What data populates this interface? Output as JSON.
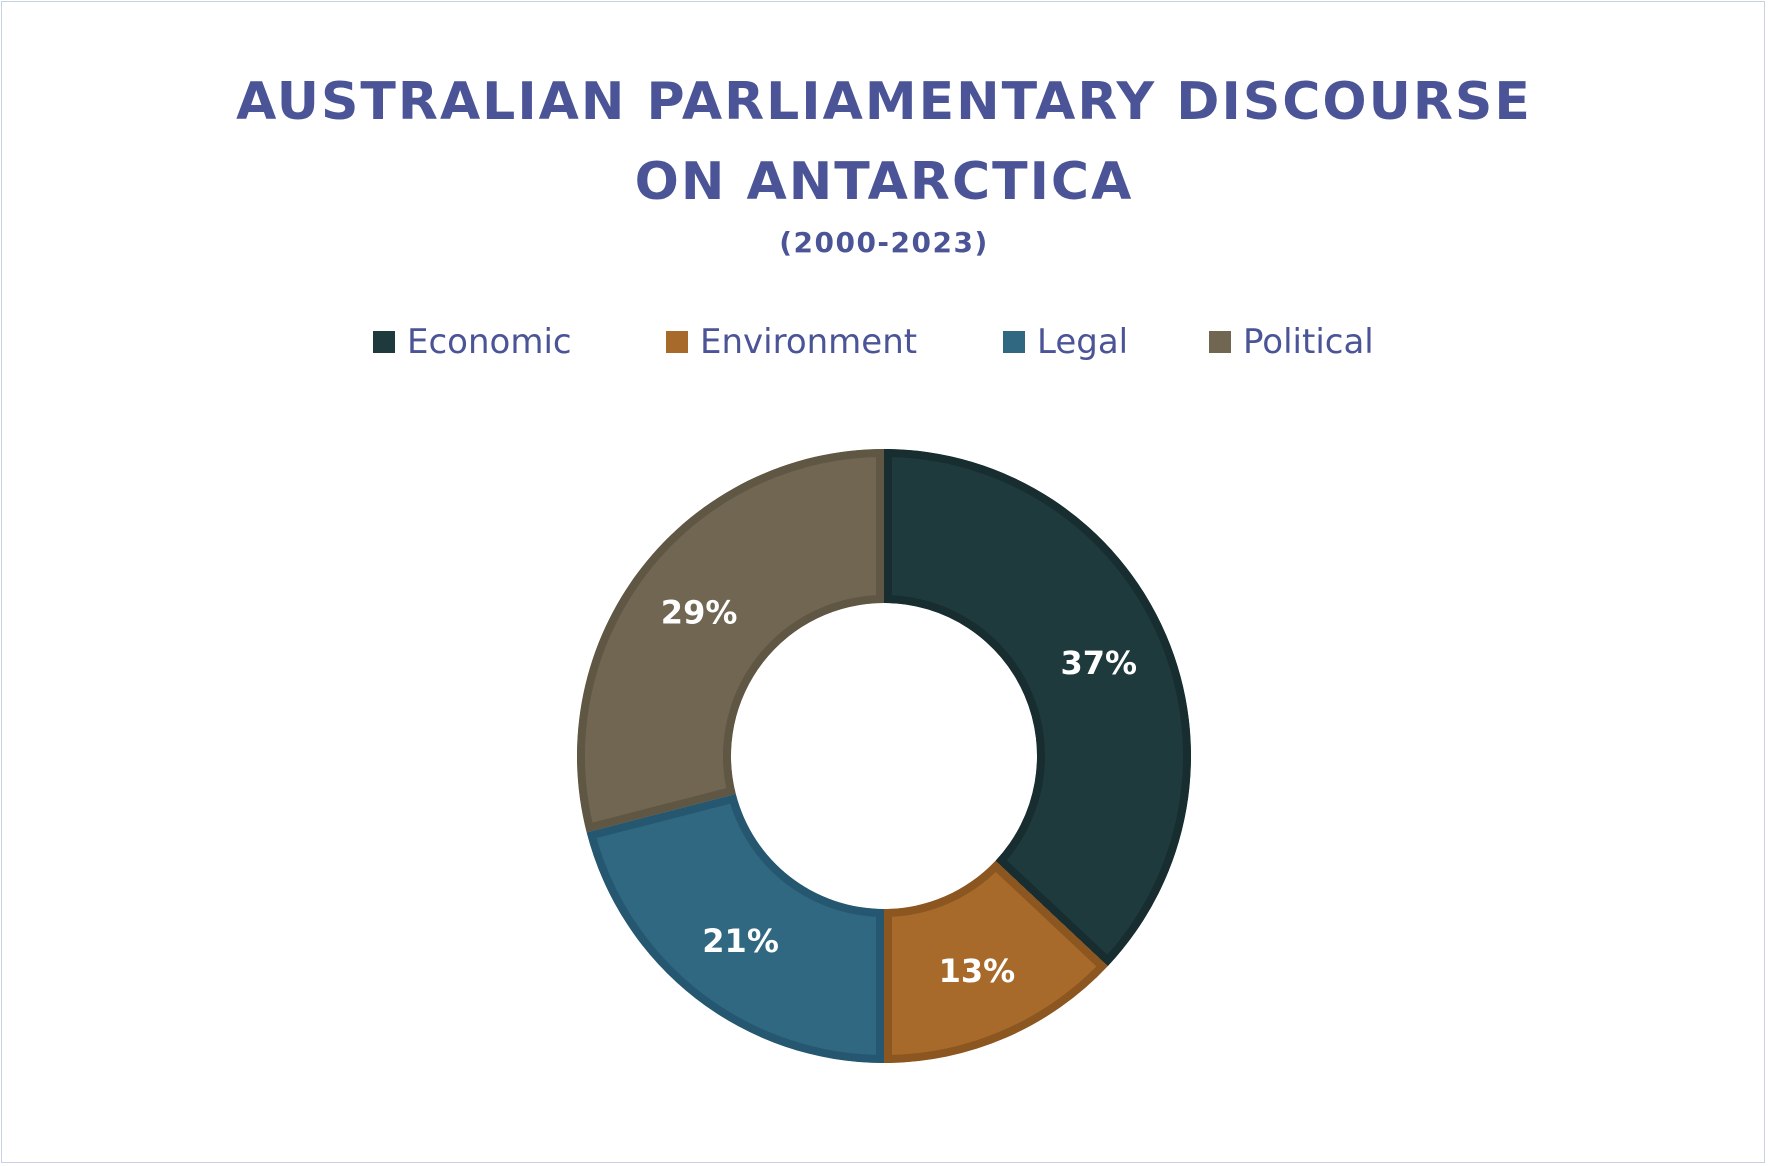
{
  "chart_data": {
    "type": "pie",
    "subtype": "donut",
    "title_lines": [
      "AUSTRALIAN PARLIAMENTARY DISCOURSE",
      "ON ANTARCTICA"
    ],
    "subtitle": "(2000-2023)",
    "legend_position": "top",
    "categories": [
      "Economic",
      "Environment",
      "Legal",
      "Political"
    ],
    "values": [
      37,
      13,
      21,
      29
    ],
    "data_labels": [
      "37%",
      "13%",
      "21%",
      "29%"
    ],
    "colors": [
      "#1e3a3c",
      "#a86a2a",
      "#2f6880",
      "#716651"
    ],
    "border_colors": [
      "#172d2f",
      "#8c5620",
      "#255870",
      "#5f5644"
    ]
  }
}
